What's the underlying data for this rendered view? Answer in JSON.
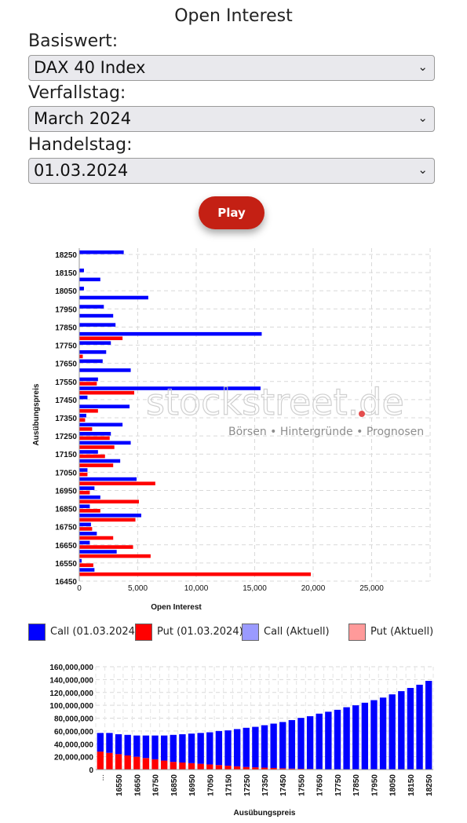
{
  "page": {
    "title": "Open Interest"
  },
  "form": {
    "underlying_label": "Basiswert:",
    "underlying_value": "DAX 40 Index",
    "expiry_label": "Verfallstag:",
    "expiry_value": "March 2024",
    "tradeday_label": "Handelstag:",
    "tradeday_value": "01.03.2024",
    "play_label": "Play"
  },
  "watermark": {
    "brand": "stockstreet.de",
    "tagline": "Börsen • Hintergründe • Prognosen"
  },
  "legend": [
    {
      "label": "Call (01.03.2024)",
      "color": "#0000ff"
    },
    {
      "label": "Put (01.03.2024)",
      "color": "#ff0000"
    },
    {
      "label": "Call (Aktuell)",
      "color": "#9a9aff"
    },
    {
      "label": "Put (Aktuell)",
      "color": "#ff9a9a"
    }
  ],
  "chart_data": [
    {
      "type": "bar",
      "orientation": "horizontal",
      "xlabel": "Open Interest",
      "ylabel": "Ausübungspreis",
      "xlim": [
        0,
        30000
      ],
      "xticks": [
        "0",
        "5,000",
        "10,000",
        "15,000",
        "20,000",
        "25,000"
      ],
      "ytick_labels": [
        "18250",
        "18150",
        "18050",
        "17950",
        "17850",
        "17750",
        "17650",
        "17550",
        "17450",
        "17350",
        "17250",
        "17150",
        "17050",
        "16950",
        "16850",
        "16750",
        "16650",
        "16550",
        "16450"
      ],
      "grid": true,
      "categories": [
        18250,
        18200,
        18150,
        18100,
        18050,
        18000,
        17950,
        17900,
        17850,
        17800,
        17750,
        17700,
        17650,
        17600,
        17550,
        17500,
        17450,
        17400,
        17350,
        17300,
        17250,
        17200,
        17150,
        17100,
        17050,
        17000,
        16950,
        16900,
        16850,
        16800,
        16750,
        16700,
        16650,
        16600,
        16550,
        16500,
        16450
      ],
      "series": [
        {
          "name": "Call (01.03.2024)",
          "color": "#0000ff",
          "values": [
            3800,
            0,
            400,
            1800,
            400,
            5900,
            2100,
            2900,
            3100,
            15600,
            2700,
            2300,
            2000,
            4400,
            1600,
            15500,
            700,
            4300,
            600,
            3700,
            2700,
            4400,
            1600,
            3500,
            700,
            4900,
            1300,
            1800,
            900,
            5300,
            1000,
            1500,
            900,
            3200,
            200,
            1300,
            0
          ]
        },
        {
          "name": "Put (01.03.2024)",
          "color": "#ff0000",
          "values": [
            0,
            0,
            0,
            0,
            0,
            0,
            0,
            0,
            0,
            3700,
            0,
            300,
            0,
            0,
            1500,
            4700,
            0,
            1600,
            500,
            1100,
            2600,
            3000,
            2200,
            2900,
            700,
            6500,
            900,
            5100,
            1800,
            4800,
            1100,
            2900,
            4600,
            6100,
            1200,
            19800,
            0
          ]
        }
      ]
    },
    {
      "type": "bar",
      "stacked": true,
      "xlabel": "Ausübungspreis",
      "ylabel": "",
      "ylim": [
        0,
        160000000
      ],
      "yticks": [
        "0",
        "20,000,000",
        "40,000,000",
        "60,000,000",
        "80,000,000",
        "100,000,000",
        "120,000,000",
        "140,000,000",
        "160,000,000"
      ],
      "xtick_labels": [
        "16550",
        "16650",
        "16750",
        "16850",
        "16950",
        "17050",
        "17150",
        "17250",
        "17350",
        "17450",
        "17550",
        "17650",
        "17750",
        "17850",
        "17950",
        "18050",
        "18150",
        "18250"
      ],
      "first_tick_label": "...",
      "grid": true,
      "categories": [
        16450,
        16500,
        16550,
        16600,
        16650,
        16700,
        16750,
        16800,
        16850,
        16900,
        16950,
        17000,
        17050,
        17100,
        17150,
        17200,
        17250,
        17300,
        17350,
        17400,
        17450,
        17500,
        17550,
        17600,
        17650,
        17700,
        17750,
        17800,
        17850,
        17900,
        17950,
        18000,
        18050,
        18100,
        18150,
        18200,
        18250
      ],
      "series": [
        {
          "name": "Put",
          "color": "#ff0000",
          "values": [
            28000000,
            26000000,
            24000000,
            22000000,
            20000000,
            18000000,
            16000000,
            14000000,
            12000000,
            11000000,
            10000000,
            9000000,
            8000000,
            7000000,
            6000000,
            5000000,
            4000000,
            3500000,
            3000000,
            2500000,
            2000000,
            1500000,
            1200000,
            1000000,
            800000,
            600000,
            500000,
            400000,
            300000,
            200000,
            150000,
            100000,
            80000,
            60000,
            40000,
            20000,
            10000
          ]
        },
        {
          "name": "Call",
          "color": "#0000ff",
          "values": [
            29000000,
            31000000,
            31000000,
            32000000,
            33000000,
            35000000,
            37000000,
            39000000,
            42000000,
            44000000,
            46000000,
            48000000,
            50000000,
            53000000,
            55000000,
            58000000,
            61000000,
            63000000,
            66000000,
            69000000,
            72000000,
            75500000,
            79200000,
            82000000,
            86200000,
            89400000,
            92500000,
            96600000,
            99700000,
            103800000,
            107850000,
            111900000,
            116920000,
            121940000,
            126960000,
            131980000,
            138000000
          ]
        }
      ]
    }
  ]
}
